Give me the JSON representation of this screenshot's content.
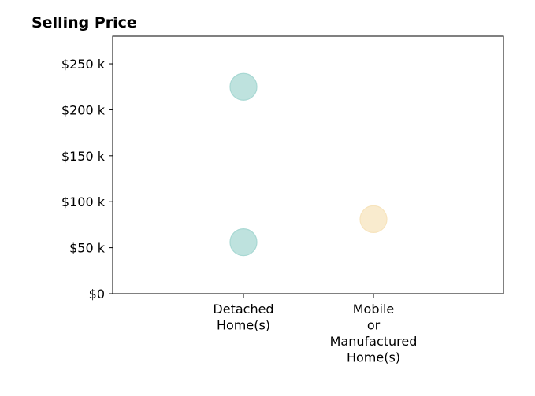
{
  "chart_data": {
    "type": "scatter",
    "title": "Selling Price",
    "xlabel": "",
    "ylabel": "",
    "categories": [
      [
        "Detached",
        "Home(s)"
      ],
      [
        "Mobile",
        "or",
        "Manufactured",
        "Home(s)"
      ]
    ],
    "ylim": [
      0,
      280000
    ],
    "yticks": [
      {
        "value": 0,
        "label": "$0"
      },
      {
        "value": 50000,
        "label": "$50 k"
      },
      {
        "value": 100000,
        "label": "$100 k"
      },
      {
        "value": 150000,
        "label": "$150 k"
      },
      {
        "value": 200000,
        "label": "$200 k"
      },
      {
        "value": 250000,
        "label": "$250 k"
      }
    ],
    "points": [
      {
        "category": 0,
        "value": 225000,
        "color": "#a8d8d3"
      },
      {
        "category": 0,
        "value": 56000,
        "color": "#a8d8d3"
      },
      {
        "category": 1,
        "value": 81000,
        "color": "#f7e4bd"
      }
    ],
    "grid": false,
    "legend": "none"
  }
}
